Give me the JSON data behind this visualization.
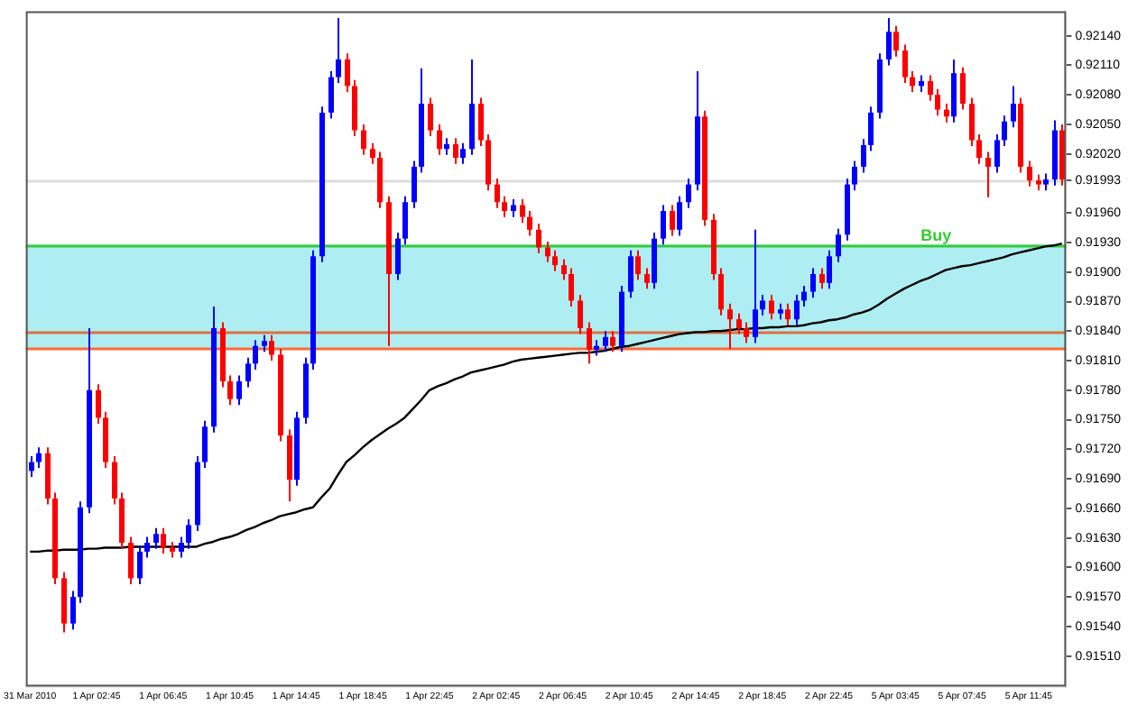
{
  "chart_data": {
    "type": "candlestick",
    "categories": [
      "31 Mar 2010",
      null,
      null,
      null,
      null,
      null,
      null,
      null,
      "1 Apr 02:45",
      null,
      null,
      null,
      null,
      null,
      null,
      null,
      "1 Apr 06:45",
      null,
      null,
      null,
      null,
      null,
      null,
      null,
      "1 Apr 10:45",
      null,
      null,
      null,
      null,
      null,
      null,
      null,
      "1 Apr 14:45",
      null,
      null,
      null,
      null,
      null,
      null,
      null,
      "1 Apr 18:45",
      null,
      null,
      null,
      null,
      null,
      null,
      null,
      "1 Apr 22:45",
      null,
      null,
      null,
      null,
      null,
      null,
      null,
      "2 Apr 02:45",
      null,
      null,
      null,
      null,
      null,
      null,
      null,
      "2 Apr 06:45",
      null,
      null,
      null,
      null,
      null,
      null,
      null,
      "2 Apr 10:45",
      null,
      null,
      null,
      null,
      null,
      null,
      null,
      "2 Apr 14:45",
      null,
      null,
      null,
      null,
      null,
      null,
      null,
      "2 Apr 18:45",
      null,
      null,
      null,
      null,
      null,
      null,
      null,
      "2 Apr 22:45",
      null,
      null,
      null,
      null,
      null,
      null,
      null,
      "5 Apr 03:45",
      null,
      null,
      null,
      null,
      null,
      null,
      null,
      "5 Apr 07:45",
      null,
      null,
      null,
      null,
      null,
      null,
      null,
      "5 Apr 11:45",
      null,
      null,
      null,
      null
    ],
    "ohlc": [
      [
        0.91698,
        0.91713,
        0.91692,
        0.91707
      ],
      [
        0.91707,
        0.91722,
        0.91701,
        0.91716
      ],
      [
        0.91716,
        0.91722,
        0.91664,
        0.9167
      ],
      [
        0.9167,
        0.91676,
        0.91583,
        0.91589
      ],
      [
        0.91589,
        0.91595,
        0.91534,
        0.91543
      ],
      [
        0.91543,
        0.91576,
        0.91537,
        0.9157
      ],
      [
        0.9157,
        0.91667,
        0.91564,
        0.91661
      ],
      [
        0.91661,
        0.91843,
        0.91655,
        0.9178
      ],
      [
        0.9178,
        0.91786,
        0.91746,
        0.91752
      ],
      [
        0.91752,
        0.91758,
        0.91701,
        0.91707
      ],
      [
        0.91707,
        0.91713,
        0.91664,
        0.9167
      ],
      [
        0.9167,
        0.91676,
        0.91619,
        0.91625
      ],
      [
        0.91625,
        0.91631,
        0.91583,
        0.91589
      ],
      [
        0.91589,
        0.91622,
        0.91583,
        0.91616
      ],
      [
        0.91616,
        0.91631,
        0.9161,
        0.91625
      ],
      [
        0.91625,
        0.9164,
        0.91619,
        0.91634
      ],
      [
        0.91634,
        0.9164,
        0.91614,
        0.9162
      ],
      [
        0.9162,
        0.91626,
        0.9161,
        0.91616
      ],
      [
        0.91616,
        0.91631,
        0.9161,
        0.91625
      ],
      [
        0.91625,
        0.91649,
        0.91619,
        0.91643
      ],
      [
        0.91643,
        0.91713,
        0.91637,
        0.91707
      ],
      [
        0.91707,
        0.91749,
        0.91701,
        0.91743
      ],
      [
        0.91743,
        0.91865,
        0.91737,
        0.91843
      ],
      [
        0.91843,
        0.91849,
        0.91783,
        0.91789
      ],
      [
        0.91789,
        0.91795,
        0.91765,
        0.91771
      ],
      [
        0.91771,
        0.91795,
        0.91765,
        0.91789
      ],
      [
        0.91789,
        0.91813,
        0.91783,
        0.91807
      ],
      [
        0.91807,
        0.91831,
        0.91801,
        0.91825
      ],
      [
        0.91825,
        0.91836,
        0.91819,
        0.9183
      ],
      [
        0.9183,
        0.91836,
        0.9181,
        0.91816
      ],
      [
        0.91816,
        0.91822,
        0.91728,
        0.91734
      ],
      [
        0.91734,
        0.9174,
        0.91667,
        0.91689
      ],
      [
        0.91689,
        0.91758,
        0.91683,
        0.91752
      ],
      [
        0.91752,
        0.91813,
        0.91746,
        0.91807
      ],
      [
        0.91807,
        0.91922,
        0.91801,
        0.91916
      ],
      [
        0.91916,
        0.92068,
        0.9191,
        0.92062
      ],
      [
        0.92062,
        0.92104,
        0.92056,
        0.92098
      ],
      [
        0.92098,
        0.92158,
        0.92092,
        0.92116
      ],
      [
        0.92116,
        0.92122,
        0.92083,
        0.92089
      ],
      [
        0.92089,
        0.92095,
        0.92038,
        0.92044
      ],
      [
        0.92044,
        0.9205,
        0.92019,
        0.92025
      ],
      [
        0.92025,
        0.92031,
        0.9201,
        0.92016
      ],
      [
        0.92016,
        0.92022,
        0.91965,
        0.91971
      ],
      [
        0.91971,
        0.91977,
        0.91825,
        0.91898
      ],
      [
        0.91898,
        0.9194,
        0.91892,
        0.91934
      ],
      [
        0.91934,
        0.91977,
        0.91928,
        0.91971
      ],
      [
        0.91971,
        0.92013,
        0.91965,
        0.92007
      ],
      [
        0.92007,
        0.92107,
        0.92001,
        0.92071
      ],
      [
        0.92071,
        0.92077,
        0.92038,
        0.92044
      ],
      [
        0.92044,
        0.9205,
        0.92019,
        0.92025
      ],
      [
        0.92025,
        0.92036,
        0.92019,
        0.9203
      ],
      [
        0.9203,
        0.92036,
        0.9201,
        0.92016
      ],
      [
        0.92016,
        0.92031,
        0.9201,
        0.92025
      ],
      [
        0.92025,
        0.92116,
        0.92019,
        0.92071
      ],
      [
        0.92071,
        0.92077,
        0.92028,
        0.92034
      ],
      [
        0.92034,
        0.9204,
        0.91983,
        0.91989
      ],
      [
        0.91989,
        0.91995,
        0.91965,
        0.91971
      ],
      [
        0.91971,
        0.91977,
        0.91956,
        0.91962
      ],
      [
        0.91962,
        0.91974,
        0.91956,
        0.91968
      ],
      [
        0.91968,
        0.91974,
        0.9195,
        0.91956
      ],
      [
        0.91956,
        0.91962,
        0.91937,
        0.91943
      ],
      [
        0.91943,
        0.91949,
        0.91919,
        0.91925
      ],
      [
        0.91925,
        0.91931,
        0.9191,
        0.91916
      ],
      [
        0.91916,
        0.91922,
        0.91901,
        0.91907
      ],
      [
        0.91907,
        0.91913,
        0.91892,
        0.91898
      ],
      [
        0.91898,
        0.91904,
        0.91865,
        0.91871
      ],
      [
        0.91871,
        0.91877,
        0.91837,
        0.91843
      ],
      [
        0.91843,
        0.91849,
        0.91807,
        0.91821
      ],
      [
        0.91821,
        0.91831,
        0.91815,
        0.91825
      ],
      [
        0.91825,
        0.9184,
        0.91819,
        0.91834
      ],
      [
        0.91834,
        0.9184,
        0.91819,
        0.91825
      ],
      [
        0.91825,
        0.91886,
        0.91819,
        0.9188
      ],
      [
        0.9188,
        0.91922,
        0.91874,
        0.91916
      ],
      [
        0.91916,
        0.91922,
        0.91892,
        0.91898
      ],
      [
        0.91898,
        0.91904,
        0.91883,
        0.91889
      ],
      [
        0.91889,
        0.9194,
        0.91883,
        0.91934
      ],
      [
        0.91934,
        0.91968,
        0.91928,
        0.91962
      ],
      [
        0.91962,
        0.91968,
        0.91937,
        0.91943
      ],
      [
        0.91943,
        0.91977,
        0.91937,
        0.91971
      ],
      [
        0.91971,
        0.91995,
        0.91965,
        0.91989
      ],
      [
        0.91989,
        0.92104,
        0.91983,
        0.92058
      ],
      [
        0.92058,
        0.92064,
        0.91947,
        0.91953
      ],
      [
        0.91953,
        0.91959,
        0.91892,
        0.91898
      ],
      [
        0.91898,
        0.91904,
        0.91856,
        0.91862
      ],
      [
        0.91862,
        0.91868,
        0.91822,
        0.91852
      ],
      [
        0.91852,
        0.91858,
        0.91837,
        0.91843
      ],
      [
        0.91843,
        0.91849,
        0.91828,
        0.91834
      ],
      [
        0.91834,
        0.91943,
        0.91828,
        0.91862
      ],
      [
        0.91862,
        0.91877,
        0.91856,
        0.91871
      ],
      [
        0.91871,
        0.91877,
        0.91852,
        0.91858
      ],
      [
        0.91858,
        0.91868,
        0.91852,
        0.91862
      ],
      [
        0.91862,
        0.91868,
        0.91846,
        0.91852
      ],
      [
        0.91852,
        0.91877,
        0.91846,
        0.91871
      ],
      [
        0.91871,
        0.91886,
        0.91865,
        0.9188
      ],
      [
        0.9188,
        0.91904,
        0.91874,
        0.91898
      ],
      [
        0.91898,
        0.91904,
        0.91883,
        0.91889
      ],
      [
        0.91889,
        0.91922,
        0.91883,
        0.91916
      ],
      [
        0.91916,
        0.91944,
        0.9191,
        0.91938
      ],
      [
        0.91938,
        0.91995,
        0.91932,
        0.91989
      ],
      [
        0.91989,
        0.92013,
        0.91983,
        0.92007
      ],
      [
        0.92007,
        0.92035,
        0.92001,
        0.92029
      ],
      [
        0.92029,
        0.92068,
        0.92023,
        0.92062
      ],
      [
        0.92062,
        0.92122,
        0.92056,
        0.92116
      ],
      [
        0.92116,
        0.92158,
        0.9211,
        0.92144
      ],
      [
        0.92144,
        0.9215,
        0.92119,
        0.92125
      ],
      [
        0.92125,
        0.92131,
        0.92092,
        0.92098
      ],
      [
        0.92098,
        0.92104,
        0.92083,
        0.92089
      ],
      [
        0.92089,
        0.921,
        0.92083,
        0.92094
      ],
      [
        0.92094,
        0.921,
        0.92074,
        0.9208
      ],
      [
        0.9208,
        0.92086,
        0.92059,
        0.92065
      ],
      [
        0.92065,
        0.92071,
        0.92052,
        0.92058
      ],
      [
        0.92058,
        0.92116,
        0.92052,
        0.92102
      ],
      [
        0.92102,
        0.92108,
        0.92065,
        0.92071
      ],
      [
        0.92071,
        0.92077,
        0.92028,
        0.92034
      ],
      [
        0.92034,
        0.9204,
        0.9201,
        0.92016
      ],
      [
        0.92016,
        0.92022,
        0.91976,
        0.92007
      ],
      [
        0.92007,
        0.9204,
        0.92001,
        0.92034
      ],
      [
        0.92034,
        0.92059,
        0.92028,
        0.92053
      ],
      [
        0.92053,
        0.92089,
        0.92047,
        0.92071
      ],
      [
        0.92071,
        0.92077,
        0.92001,
        0.92007
      ],
      [
        0.92007,
        0.92013,
        0.91987,
        0.91993
      ],
      [
        0.91993,
        0.91999,
        0.91983,
        0.91989
      ],
      [
        0.91989,
        0.92,
        0.91983,
        0.91994
      ],
      [
        0.91994,
        0.92054,
        0.91988,
        0.92044
      ],
      [
        0.92044,
        0.9205,
        0.91988,
        0.91994
      ]
    ],
    "colors": [
      "#0000ff",
      "#0000ff",
      "#ff0000",
      "#ff0000",
      "#ff0000",
      "#0000ff",
      "#0000ff",
      "#0000ff",
      "#ff0000",
      "#ff0000",
      "#ff0000",
      "#ff0000",
      "#ff0000",
      "#0000ff",
      "#0000ff",
      "#0000ff",
      "#ff0000",
      "#ff0000",
      "#0000ff",
      "#0000ff",
      "#0000ff",
      "#0000ff",
      "#0000ff",
      "#ff0000",
      "#ff0000",
      "#0000ff",
      "#0000ff",
      "#0000ff",
      "#0000ff",
      "#ff0000",
      "#ff0000",
      "#ff0000",
      "#0000ff",
      "#0000ff",
      "#0000ff",
      "#0000ff",
      "#0000ff",
      "#0000ff",
      "#ff0000",
      "#ff0000",
      "#ff0000",
      "#ff0000",
      "#ff0000",
      "#ff0000",
      "#0000ff",
      "#0000ff",
      "#0000ff",
      "#0000ff",
      "#ff0000",
      "#ff0000",
      "#0000ff",
      "#ff0000",
      "#0000ff",
      "#0000ff",
      "#ff0000",
      "#ff0000",
      "#ff0000",
      "#ff0000",
      "#0000ff",
      "#ff0000",
      "#ff0000",
      "#ff0000",
      "#ff0000",
      "#ff0000",
      "#ff0000",
      "#ff0000",
      "#ff0000",
      "#ff0000",
      "#0000ff",
      "#0000ff",
      "#ff0000",
      "#0000ff",
      "#0000ff",
      "#ff0000",
      "#ff0000",
      "#0000ff",
      "#0000ff",
      "#ff0000",
      "#0000ff",
      "#0000ff",
      "#0000ff",
      "#ff0000",
      "#ff0000",
      "#ff0000",
      "#ff0000",
      "#ff0000",
      "#ff0000",
      "#0000ff",
      "#0000ff",
      "#ff0000",
      "#0000ff",
      "#ff0000",
      "#0000ff",
      "#0000ff",
      "#0000ff",
      "#ff0000",
      "#0000ff",
      "#0000ff",
      "#0000ff",
      "#0000ff",
      "#0000ff",
      "#0000ff",
      "#0000ff",
      "#0000ff",
      "#ff0000",
      "#ff0000",
      "#ff0000",
      "#0000ff",
      "#ff0000",
      "#ff0000",
      "#ff0000",
      "#0000ff",
      "#ff0000",
      "#ff0000",
      "#ff0000",
      "#ff0000",
      "#0000ff",
      "#0000ff",
      "#0000ff",
      "#ff0000",
      "#ff0000",
      "#ff0000",
      "#0000ff",
      "#0000ff",
      "#ff0000"
    ],
    "series": [
      {
        "type": "line",
        "color": "#000000",
        "values": [
          0.91616,
          0.91616,
          0.91617,
          0.91617,
          0.91618,
          0.91618,
          0.91618,
          0.91619,
          0.91619,
          0.9162,
          0.9162,
          0.9162,
          0.91621,
          0.91621,
          0.91621,
          0.91621,
          0.91621,
          0.91621,
          0.91621,
          0.91621,
          0.91621,
          0.91624,
          0.91626,
          0.91629,
          0.91631,
          0.91634,
          0.91638,
          0.91641,
          0.91645,
          0.91648,
          0.91652,
          0.91654,
          0.91656,
          0.91659,
          0.91661,
          0.91671,
          0.9168,
          0.91694,
          0.91707,
          0.91714,
          0.91722,
          0.91729,
          0.91735,
          0.91741,
          0.91746,
          0.91752,
          0.91761,
          0.9177,
          0.9178,
          0.91784,
          0.91787,
          0.91791,
          0.91794,
          0.91798,
          0.918,
          0.91802,
          0.91804,
          0.91806,
          0.91809,
          0.91811,
          0.91812,
          0.91813,
          0.91814,
          0.91815,
          0.91816,
          0.91817,
          0.91818,
          0.91818,
          0.91819,
          0.9182,
          0.91822,
          0.91824,
          0.91825,
          0.91827,
          0.91829,
          0.91831,
          0.91833,
          0.91835,
          0.91837,
          0.91838,
          0.91839,
          0.91839,
          0.9184,
          0.9184,
          0.91841,
          0.91842,
          0.91842,
          0.91843,
          0.91843,
          0.91844,
          0.91844,
          0.91845,
          0.91845,
          0.91846,
          0.91848,
          0.91849,
          0.91851,
          0.91852,
          0.91854,
          0.91857,
          0.91859,
          0.91862,
          0.91867,
          0.91873,
          0.91878,
          0.91883,
          0.91887,
          0.91891,
          0.91894,
          0.91898,
          0.91902,
          0.91904,
          0.91906,
          0.91907,
          0.91909,
          0.91911,
          0.91913,
          0.91915,
          0.91918,
          0.9192,
          0.91922,
          0.91924,
          0.91926,
          0.91927,
          0.91929
        ]
      }
    ],
    "ylim": [
      0.91479,
      0.92165
    ],
    "yticks": [
      {
        "value": 0.9214,
        "label": "0.92140"
      },
      {
        "value": 0.9211,
        "label": "0.92110"
      },
      {
        "value": 0.9208,
        "label": "0.92080"
      },
      {
        "value": 0.9205,
        "label": "0.92050"
      },
      {
        "value": 0.9202,
        "label": "0.92020"
      },
      {
        "value": 0.91993,
        "label": "0.91993"
      },
      {
        "value": 0.9196,
        "label": "0.91960"
      },
      {
        "value": 0.9193,
        "label": "0.91930"
      },
      {
        "value": 0.919,
        "label": "0.91900"
      },
      {
        "value": 0.9187,
        "label": "0.91870"
      },
      {
        "value": 0.9184,
        "label": "0.91840"
      },
      {
        "value": 0.9181,
        "label": "0.91810"
      },
      {
        "value": 0.9178,
        "label": "0.91780"
      },
      {
        "value": 0.9175,
        "label": "0.91750"
      },
      {
        "value": 0.9172,
        "label": "0.91720"
      },
      {
        "value": 0.9169,
        "label": "0.91690"
      },
      {
        "value": 0.9166,
        "label": "0.91660"
      },
      {
        "value": 0.9163,
        "label": "0.91630"
      },
      {
        "value": 0.916,
        "label": "0.91600"
      },
      {
        "value": 0.9157,
        "label": "0.91570"
      },
      {
        "value": 0.9154,
        "label": "0.91540"
      },
      {
        "value": 0.9151,
        "label": "0.91510"
      }
    ],
    "bands": [
      {
        "axis": "y",
        "from": 0.91822,
        "to": 0.91928,
        "color": "#aeeef2"
      }
    ],
    "ref_lines": [
      {
        "axis": "y",
        "value": 0.91993,
        "color": "#dddddd"
      },
      {
        "axis": "y",
        "value": 0.91928,
        "label": "Buy",
        "color": "#33cc33"
      },
      {
        "axis": "y",
        "value": 0.9184,
        "color": "#e07040"
      },
      {
        "axis": "y",
        "value": 0.91822,
        "color": "#ff6a33"
      }
    ]
  }
}
